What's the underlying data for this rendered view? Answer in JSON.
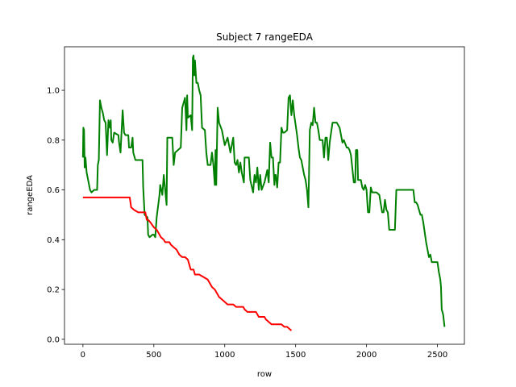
{
  "chart_data": {
    "type": "line",
    "title": "Subject 7 rangeEDA",
    "xlabel": "row",
    "ylabel": "rangeEDA",
    "xlim": [
      -130,
      2690
    ],
    "ylim": [
      -0.02,
      1.175
    ],
    "xticks": [
      0,
      500,
      1000,
      1500,
      2000,
      2500
    ],
    "yticks": [
      0.0,
      0.2,
      0.4,
      0.6,
      0.8,
      1.0
    ],
    "xtick_labels": [
      "0",
      "500",
      "1000",
      "1500",
      "2000",
      "2500"
    ],
    "ytick_labels": [
      "0.0",
      "0.2",
      "0.4",
      "0.6",
      "0.8",
      "1.0"
    ],
    "grid": false,
    "legend": "none",
    "series": [
      {
        "color": "#008000",
        "points": [
          [
            0,
            0.73
          ],
          [
            3,
            0.85
          ],
          [
            8,
            0.84
          ],
          [
            12,
            0.69
          ],
          [
            18,
            0.73
          ],
          [
            26,
            0.67
          ],
          [
            40,
            0.63
          ],
          [
            50,
            0.6
          ],
          [
            60,
            0.59
          ],
          [
            80,
            0.6
          ],
          [
            100,
            0.6
          ],
          [
            105,
            0.7
          ],
          [
            112,
            0.72
          ],
          [
            120,
            0.96
          ],
          [
            130,
            0.93
          ],
          [
            140,
            0.91
          ],
          [
            150,
            0.88
          ],
          [
            160,
            0.87
          ],
          [
            170,
            0.74
          ],
          [
            180,
            0.88
          ],
          [
            190,
            0.85
          ],
          [
            196,
            0.88
          ],
          [
            200,
            0.8
          ],
          [
            210,
            0.79
          ],
          [
            220,
            0.83
          ],
          [
            250,
            0.82
          ],
          [
            255,
            0.79
          ],
          [
            265,
            0.75
          ],
          [
            280,
            0.92
          ],
          [
            290,
            0.83
          ],
          [
            300,
            0.82
          ],
          [
            320,
            0.82
          ],
          [
            325,
            0.77
          ],
          [
            340,
            0.77
          ],
          [
            350,
            0.81
          ],
          [
            355,
            0.75
          ],
          [
            370,
            0.72
          ],
          [
            420,
            0.72
          ],
          [
            425,
            0.61
          ],
          [
            435,
            0.5
          ],
          [
            455,
            0.49
          ],
          [
            460,
            0.42
          ],
          [
            470,
            0.41
          ],
          [
            490,
            0.42
          ],
          [
            500,
            0.42
          ],
          [
            510,
            0.41
          ],
          [
            520,
            0.49
          ],
          [
            540,
            0.58
          ],
          [
            545,
            0.62
          ],
          [
            560,
            0.58
          ],
          [
            570,
            0.66
          ],
          [
            590,
            0.54
          ],
          [
            595,
            0.81
          ],
          [
            630,
            0.81
          ],
          [
            640,
            0.7
          ],
          [
            650,
            0.75
          ],
          [
            670,
            0.76
          ],
          [
            690,
            0.77
          ],
          [
            700,
            0.93
          ],
          [
            710,
            0.95
          ],
          [
            720,
            0.97
          ],
          [
            730,
            0.84
          ],
          [
            735,
            0.98
          ],
          [
            740,
            0.89
          ],
          [
            760,
            0.9
          ],
          [
            770,
            0.84
          ],
          [
            775,
            1.13
          ],
          [
            780,
            1.14
          ],
          [
            785,
            1.06
          ],
          [
            790,
            1.12
          ],
          [
            800,
            1.03
          ],
          [
            810,
            1.03
          ],
          [
            820,
            1.0
          ],
          [
            830,
            0.98
          ],
          [
            840,
            0.85
          ],
          [
            860,
            0.84
          ],
          [
            870,
            0.75
          ],
          [
            880,
            0.7
          ],
          [
            900,
            0.7
          ],
          [
            910,
            0.75
          ],
          [
            920,
            0.7
          ],
          [
            930,
            0.62
          ],
          [
            935,
            0.76
          ],
          [
            940,
            0.62
          ],
          [
            950,
            0.93
          ],
          [
            960,
            0.87
          ],
          [
            980,
            0.84
          ],
          [
            1000,
            0.78
          ],
          [
            1020,
            0.81
          ],
          [
            1040,
            0.75
          ],
          [
            1060,
            0.81
          ],
          [
            1070,
            0.71
          ],
          [
            1080,
            0.7
          ],
          [
            1090,
            0.72
          ],
          [
            1100,
            0.67
          ],
          [
            1110,
            0.71
          ],
          [
            1120,
            0.67
          ],
          [
            1135,
            0.63
          ],
          [
            1140,
            0.73
          ],
          [
            1170,
            0.73
          ],
          [
            1180,
            0.64
          ],
          [
            1200,
            0.59
          ],
          [
            1210,
            0.66
          ],
          [
            1220,
            0.63
          ],
          [
            1230,
            0.69
          ],
          [
            1240,
            0.6
          ],
          [
            1250,
            0.66
          ],
          [
            1260,
            0.6
          ],
          [
            1280,
            0.63
          ],
          [
            1300,
            0.68
          ],
          [
            1310,
            0.63
          ],
          [
            1320,
            0.79
          ],
          [
            1330,
            0.73
          ],
          [
            1340,
            0.73
          ],
          [
            1350,
            0.62
          ],
          [
            1355,
            0.66
          ],
          [
            1360,
            0.66
          ],
          [
            1370,
            0.61
          ],
          [
            1380,
            0.71
          ],
          [
            1390,
            0.71
          ],
          [
            1400,
            0.85
          ],
          [
            1410,
            0.83
          ],
          [
            1420,
            0.83
          ],
          [
            1440,
            0.84
          ],
          [
            1450,
            0.97
          ],
          [
            1460,
            0.98
          ],
          [
            1470,
            0.9
          ],
          [
            1480,
            0.96
          ],
          [
            1490,
            0.9
          ],
          [
            1500,
            0.86
          ],
          [
            1510,
            0.82
          ],
          [
            1520,
            0.77
          ],
          [
            1530,
            0.73
          ],
          [
            1540,
            0.72
          ],
          [
            1560,
            0.66
          ],
          [
            1570,
            0.64
          ],
          [
            1580,
            0.6
          ],
          [
            1590,
            0.53
          ],
          [
            1600,
            0.84
          ],
          [
            1610,
            0.87
          ],
          [
            1620,
            0.86
          ],
          [
            1630,
            0.93
          ],
          [
            1640,
            0.87
          ],
          [
            1650,
            0.87
          ],
          [
            1660,
            0.84
          ],
          [
            1670,
            0.8
          ],
          [
            1690,
            0.8
          ],
          [
            1700,
            0.73
          ],
          [
            1710,
            0.81
          ],
          [
            1720,
            0.81
          ],
          [
            1730,
            0.72
          ],
          [
            1740,
            0.79
          ],
          [
            1760,
            0.87
          ],
          [
            1790,
            0.87
          ],
          [
            1800,
            0.86
          ],
          [
            1810,
            0.85
          ],
          [
            1830,
            0.79
          ],
          [
            1840,
            0.8
          ],
          [
            1860,
            0.77
          ],
          [
            1870,
            0.77
          ],
          [
            1880,
            0.76
          ],
          [
            1890,
            0.74
          ],
          [
            1910,
            0.63
          ],
          [
            1920,
            0.63
          ],
          [
            1925,
            0.76
          ],
          [
            1935,
            0.76
          ],
          [
            1940,
            0.64
          ],
          [
            1950,
            0.64
          ],
          [
            1960,
            0.64
          ],
          [
            1970,
            0.61
          ],
          [
            1980,
            0.6
          ],
          [
            1990,
            0.62
          ],
          [
            2000,
            0.6
          ],
          [
            2010,
            0.51
          ],
          [
            2020,
            0.51
          ],
          [
            2030,
            0.61
          ],
          [
            2040,
            0.59
          ],
          [
            2050,
            0.59
          ],
          [
            2070,
            0.59
          ],
          [
            2090,
            0.58
          ],
          [
            2110,
            0.51
          ],
          [
            2120,
            0.51
          ],
          [
            2130,
            0.56
          ],
          [
            2140,
            0.52
          ],
          [
            2150,
            0.51
          ],
          [
            2160,
            0.44
          ],
          [
            2180,
            0.44
          ],
          [
            2200,
            0.44
          ],
          [
            2210,
            0.6
          ],
          [
            2240,
            0.6
          ],
          [
            2300,
            0.6
          ],
          [
            2330,
            0.6
          ],
          [
            2340,
            0.55
          ],
          [
            2350,
            0.55
          ],
          [
            2360,
            0.54
          ],
          [
            2370,
            0.52
          ],
          [
            2380,
            0.5
          ],
          [
            2390,
            0.5
          ],
          [
            2400,
            0.47
          ],
          [
            2410,
            0.43
          ],
          [
            2420,
            0.39
          ],
          [
            2430,
            0.36
          ],
          [
            2440,
            0.33
          ],
          [
            2450,
            0.34
          ],
          [
            2460,
            0.31
          ],
          [
            2500,
            0.31
          ],
          [
            2510,
            0.27
          ],
          [
            2520,
            0.24
          ],
          [
            2525,
            0.21
          ],
          [
            2530,
            0.12
          ],
          [
            2540,
            0.1
          ],
          [
            2550,
            0.05
          ]
        ]
      },
      {
        "color": "#ff0000",
        "points": [
          [
            0,
            0.57
          ],
          [
            100,
            0.57
          ],
          [
            200,
            0.57
          ],
          [
            300,
            0.57
          ],
          [
            330,
            0.57
          ],
          [
            340,
            0.53
          ],
          [
            360,
            0.52
          ],
          [
            390,
            0.51
          ],
          [
            440,
            0.51
          ],
          [
            450,
            0.48
          ],
          [
            460,
            0.48
          ],
          [
            475,
            0.47
          ],
          [
            500,
            0.45
          ],
          [
            520,
            0.44
          ],
          [
            530,
            0.43
          ],
          [
            550,
            0.41
          ],
          [
            570,
            0.4
          ],
          [
            580,
            0.39
          ],
          [
            610,
            0.39
          ],
          [
            620,
            0.38
          ],
          [
            640,
            0.37
          ],
          [
            660,
            0.36
          ],
          [
            680,
            0.34
          ],
          [
            700,
            0.33
          ],
          [
            720,
            0.33
          ],
          [
            740,
            0.32
          ],
          [
            750,
            0.3
          ],
          [
            760,
            0.28
          ],
          [
            780,
            0.28
          ],
          [
            790,
            0.26
          ],
          [
            820,
            0.26
          ],
          [
            850,
            0.25
          ],
          [
            880,
            0.24
          ],
          [
            900,
            0.22
          ],
          [
            910,
            0.21
          ],
          [
            930,
            0.2
          ],
          [
            940,
            0.19
          ],
          [
            960,
            0.17
          ],
          [
            980,
            0.16
          ],
          [
            1000,
            0.15
          ],
          [
            1020,
            0.14
          ],
          [
            1060,
            0.14
          ],
          [
            1080,
            0.13
          ],
          [
            1130,
            0.13
          ],
          [
            1140,
            0.12
          ],
          [
            1160,
            0.11
          ],
          [
            1220,
            0.11
          ],
          [
            1240,
            0.09
          ],
          [
            1280,
            0.09
          ],
          [
            1290,
            0.08
          ],
          [
            1310,
            0.07
          ],
          [
            1330,
            0.06
          ],
          [
            1350,
            0.06
          ],
          [
            1400,
            0.06
          ],
          [
            1420,
            0.05
          ],
          [
            1440,
            0.05
          ],
          [
            1460,
            0.04
          ],
          [
            1470,
            0.035
          ]
        ]
      }
    ]
  }
}
